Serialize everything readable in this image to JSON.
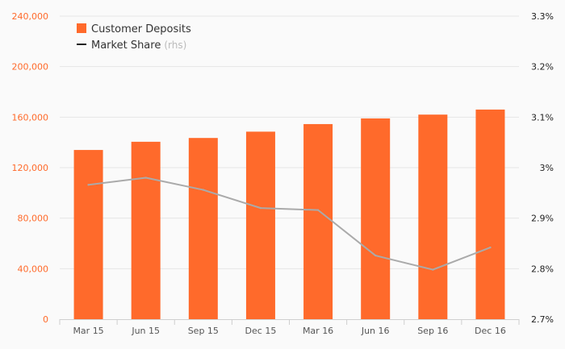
{
  "chart_data": {
    "type": "bar",
    "categories": [
      "Mar 15",
      "Jun 15",
      "Sep 15",
      "Dec 15",
      "Mar 16",
      "Jun 16",
      "Sep 16",
      "Dec 16"
    ],
    "series": [
      {
        "name": "Customer Deposits",
        "type": "bar",
        "axis": "left",
        "color": "#ff6a2b",
        "values": [
          134000,
          140500,
          143500,
          148500,
          154500,
          159000,
          162000,
          166000
        ]
      },
      {
        "name": "Market Share",
        "type": "line",
        "axis": "right",
        "color": "#aaaaaa",
        "values": [
          2.966,
          2.98,
          2.956,
          2.92,
          2.916,
          2.826,
          2.798,
          2.842
        ]
      }
    ],
    "legend": {
      "position": "top-left",
      "items": [
        {
          "label": "Customer Deposits",
          "swatch": "square",
          "color": "#ff6a2b"
        },
        {
          "label": "Market Share",
          "suffix": "(rhs)",
          "swatch": "line",
          "color": "#222222"
        }
      ]
    },
    "y_left": {
      "ylim": [
        0,
        240000
      ],
      "ticks": [
        0,
        40000,
        80000,
        120000,
        160000,
        200000,
        240000
      ],
      "tick_labels": [
        "0",
        "40,000",
        "80,000",
        "120,000",
        "160,000",
        "200,000",
        "240,000"
      ],
      "color": "#ff6a2b"
    },
    "y_right": {
      "ylim": [
        2.7,
        3.3
      ],
      "ticks": [
        2.7,
        2.8,
        2.9,
        3.0,
        3.1,
        3.2,
        3.3
      ],
      "tick_labels": [
        "2.7%",
        "2.8%",
        "2.9%",
        "3%",
        "3.1%",
        "3.2%",
        "3.3%"
      ],
      "color": "#222222"
    },
    "grid": true,
    "title": "",
    "xlabel": "",
    "ylabel": ""
  }
}
